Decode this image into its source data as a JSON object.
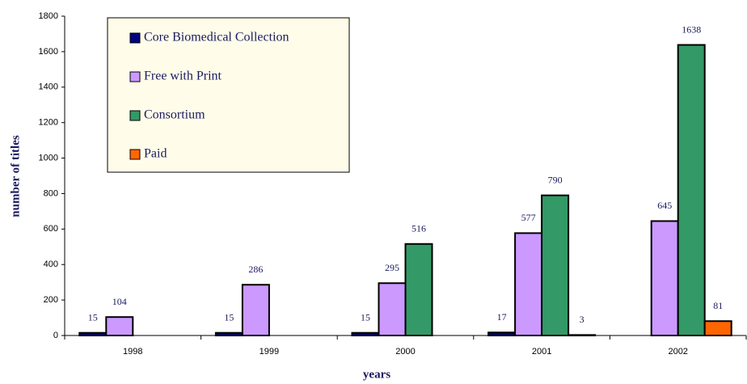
{
  "chart_data": {
    "type": "bar",
    "categories": [
      "1998",
      "1999",
      "2000",
      "2001",
      "2002"
    ],
    "series": [
      {
        "name": "Core Biomedical Collection",
        "color": "#000080",
        "values": [
          15,
          15,
          15,
          17,
          null
        ]
      },
      {
        "name": "Free with Print",
        "color": "#cc99ff",
        "values": [
          104,
          286,
          295,
          577,
          645
        ]
      },
      {
        "name": "Consortium",
        "color": "#339966",
        "values": [
          null,
          null,
          516,
          790,
          1638
        ]
      },
      {
        "name": "Paid",
        "color": "#ff6600",
        "values": [
          null,
          null,
          null,
          3,
          81
        ]
      }
    ],
    "ylim": [
      0,
      1800
    ],
    "yticks": [
      0,
      200,
      400,
      600,
      800,
      1000,
      1200,
      1400,
      1600,
      1800
    ],
    "xlabel": "years",
    "ylabel": "number of titles",
    "grid": false,
    "legend": "upper left"
  }
}
